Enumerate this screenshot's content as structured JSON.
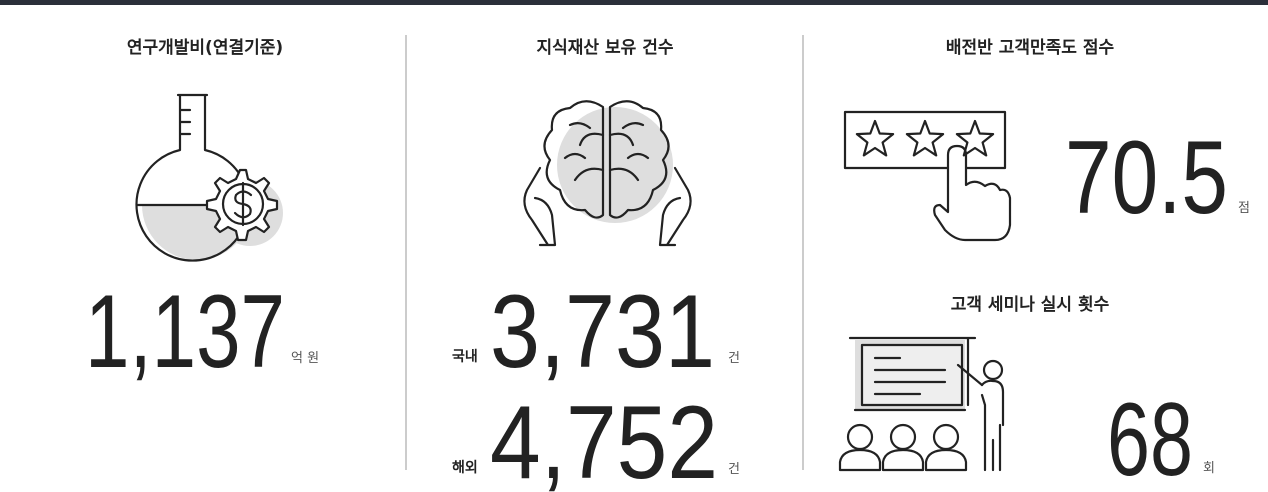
{
  "panels": [
    {
      "title": "연구개발비(연결기준)",
      "figures": [
        {
          "value": "1,137",
          "unit": "억 원"
        }
      ]
    },
    {
      "title": "지식재산 보유 건수",
      "figures": [
        {
          "label": "국내",
          "value": "3,731",
          "unit": "건"
        },
        {
          "label": "해외",
          "value": "4,752",
          "unit": "건"
        }
      ]
    },
    {
      "title": "배전반 고객만족도 점수",
      "figures": [
        {
          "value": "70.5",
          "unit": "점"
        }
      ]
    },
    {
      "title": "고객 세미나 실시 횟수",
      "figures": [
        {
          "value": "68",
          "unit": "회"
        }
      ]
    }
  ]
}
